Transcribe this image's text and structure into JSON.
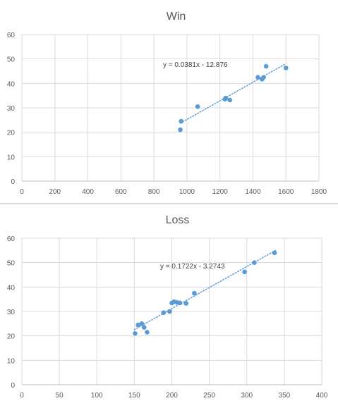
{
  "chart_data": [
    {
      "type": "scatter",
      "title": "Win",
      "xlim": [
        0,
        1800
      ],
      "ylim": [
        0,
        60
      ],
      "x_ticks": [
        "0",
        "200",
        "400",
        "600",
        "800",
        "1000",
        "1200",
        "1400",
        "1600",
        "1800"
      ],
      "y_ticks": [
        "0",
        "10",
        "20",
        "30",
        "40",
        "50",
        "60"
      ],
      "grid": true,
      "series": [
        {
          "color": "#5b9bd5",
          "points": [
            {
              "x": 960,
              "y": 21
            },
            {
              "x": 965,
              "y": 24.5
            },
            {
              "x": 1065,
              "y": 30.5
            },
            {
              "x": 1230,
              "y": 33.5
            },
            {
              "x": 1235,
              "y": 34
            },
            {
              "x": 1260,
              "y": 33.2
            },
            {
              "x": 1430,
              "y": 42.5
            },
            {
              "x": 1455,
              "y": 41.7
            },
            {
              "x": 1465,
              "y": 42.5
            },
            {
              "x": 1480,
              "y": 47
            },
            {
              "x": 1600,
              "y": 46.3
            }
          ]
        }
      ],
      "trendline": {
        "equation": "y = 0.0381x - 12.876",
        "slope": 0.0381,
        "intercept": -12.876,
        "x_range": [
          960,
          1600
        ],
        "color": "#5b9bd5"
      }
    },
    {
      "type": "scatter",
      "title": "Loss",
      "xlim": [
        0,
        400
      ],
      "ylim": [
        0,
        60
      ],
      "x_ticks": [
        "0",
        "50",
        "100",
        "150",
        "200",
        "250",
        "300",
        "350",
        "400"
      ],
      "y_ticks": [
        "0",
        "10",
        "20",
        "30",
        "40",
        "50",
        "60"
      ],
      "grid": true,
      "series": [
        {
          "color": "#5b9bd5",
          "points": [
            {
              "x": 151,
              "y": 21
            },
            {
              "x": 155,
              "y": 24.5
            },
            {
              "x": 160,
              "y": 25
            },
            {
              "x": 163,
              "y": 23.5
            },
            {
              "x": 167,
              "y": 21.5
            },
            {
              "x": 189,
              "y": 29.5
            },
            {
              "x": 197,
              "y": 30
            },
            {
              "x": 200,
              "y": 33.5
            },
            {
              "x": 203,
              "y": 34
            },
            {
              "x": 207,
              "y": 33.7
            },
            {
              "x": 211,
              "y": 33.5
            },
            {
              "x": 219,
              "y": 33.3
            },
            {
              "x": 230,
              "y": 37.5
            },
            {
              "x": 297,
              "y": 46.2
            },
            {
              "x": 310,
              "y": 50
            },
            {
              "x": 337,
              "y": 54
            }
          ]
        }
      ],
      "trendline": {
        "equation": "y = 0.1722x - 3.2743",
        "slope": 0.1722,
        "intercept": -3.2743,
        "x_range": [
          150,
          340
        ],
        "color": "#5b9bd5"
      }
    }
  ]
}
